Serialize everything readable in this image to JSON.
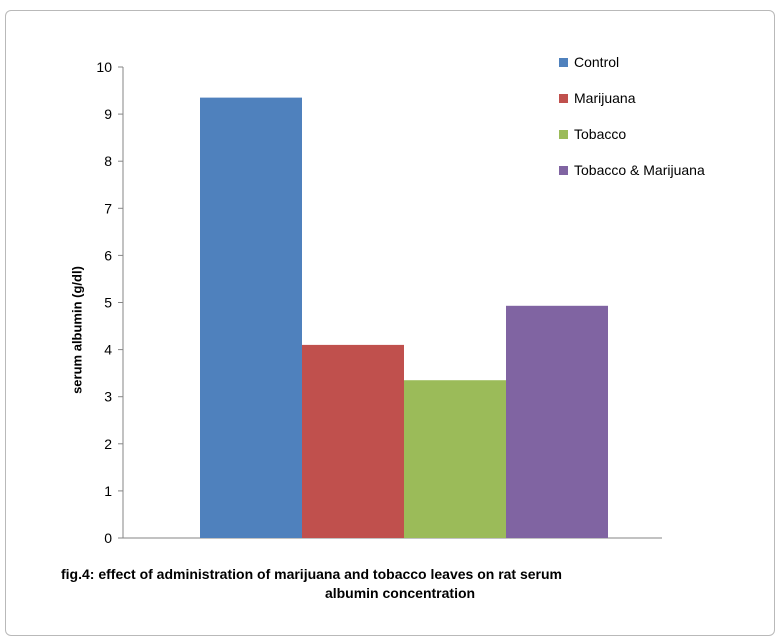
{
  "chart_data": {
    "type": "bar",
    "categories": [
      ""
    ],
    "series": [
      {
        "name": "Control",
        "color": "#4f81bd",
        "values": [
          9.35
        ]
      },
      {
        "name": "Marijuana",
        "color": "#c0504d",
        "values": [
          4.1
        ]
      },
      {
        "name": "Tobacco",
        "color": "#9bbb59",
        "values": [
          3.35
        ]
      },
      {
        "name": "Tobacco & Marijuana",
        "color": "#8064a2",
        "values": [
          4.93
        ]
      }
    ],
    "ylabel": "serum albumin (g/dl)",
    "ylim": [
      0,
      10
    ],
    "yticks": [
      0,
      1,
      2,
      3,
      4,
      5,
      6,
      7,
      8,
      9,
      10
    ],
    "grid": false,
    "legend_position": "top-right"
  },
  "caption": {
    "line1": "fig.4: effect of administration  of marijuana  and tobacco  leaves on rat serum",
    "line2": "albumin concentration"
  }
}
